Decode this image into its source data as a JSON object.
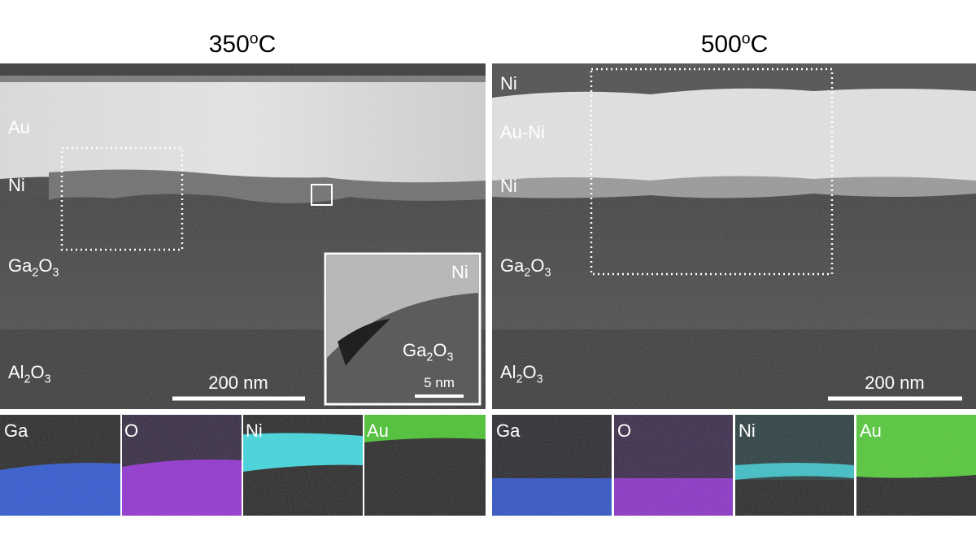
{
  "panels": [
    {
      "title": [
        "350",
        "o",
        "C"
      ],
      "layers": [
        [
          "Au"
        ],
        [
          "Ni"
        ],
        [
          "Ga",
          "2",
          "O",
          "3"
        ],
        [
          "Al",
          "2",
          "O",
          "3"
        ]
      ],
      "scale_bar": "200 nm",
      "inset": {
        "labels": [
          [
            "Ni"
          ],
          [
            "Ga",
            "2",
            "O",
            "3"
          ]
        ],
        "scale_bar": "5 nm"
      },
      "eds": [
        "Ga",
        "O",
        "Ni",
        "Au"
      ]
    },
    {
      "title": [
        "500",
        "o",
        "C"
      ],
      "layers": [
        [
          "Ni"
        ],
        [
          "Au-Ni"
        ],
        [
          "Ni"
        ],
        [
          "Ga",
          "2",
          "O",
          "3"
        ],
        [
          "Al",
          "2",
          "O",
          "3"
        ]
      ],
      "scale_bar": "200 nm",
      "eds": [
        "Ga",
        "O",
        "Ni",
        "Au"
      ]
    }
  ]
}
